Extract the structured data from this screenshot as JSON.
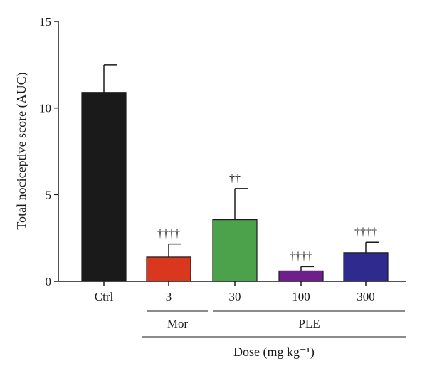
{
  "chart_data": {
    "type": "bar",
    "title": "",
    "ylabel": "Total nociceptive score (AUC)",
    "xlabel": "Dose (mg kg⁻¹)",
    "ylim": [
      0,
      15
    ],
    "yticks": [
      0,
      5,
      10,
      15
    ],
    "grid": false,
    "legend": "none",
    "categories": [
      "Ctrl",
      "3",
      "30",
      "100",
      "300"
    ],
    "values": [
      10.9,
      1.4,
      3.55,
      0.6,
      1.65
    ],
    "errors": [
      1.6,
      0.75,
      1.8,
      0.25,
      0.6
    ],
    "significance": [
      "",
      "††††",
      "††",
      "††††",
      "††††"
    ],
    "colors": [
      "#1a1a1a",
      "#d9381e",
      "#4ca24a",
      "#6e1f8c",
      "#2e2a8e"
    ],
    "groups": [
      {
        "label": "Mor",
        "from": 1,
        "to": 1
      },
      {
        "label": "PLE",
        "from": 2,
        "to": 4
      }
    ]
  }
}
